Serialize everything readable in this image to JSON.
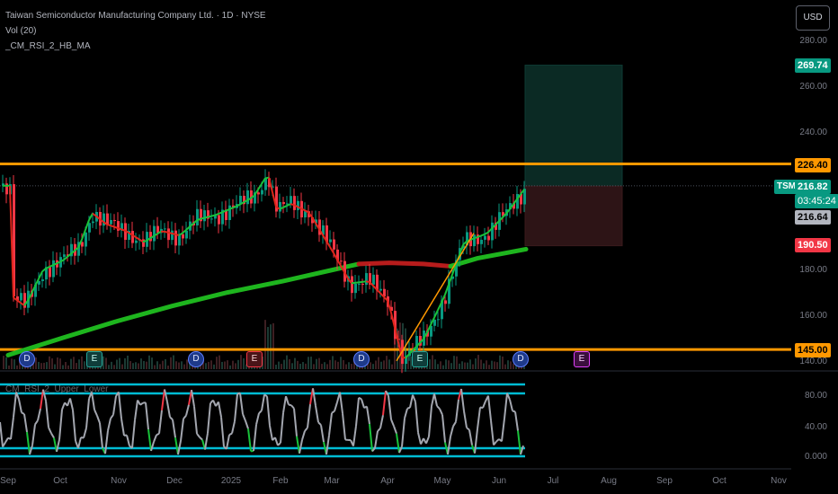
{
  "legend": {
    "symbol_title": "Taiwan Semiconductor Manufacturing Company Ltd. · 1D · NYSE",
    "volume": "Vol (20)",
    "indicator": "_CM_RSI_2_HB_MA",
    "rsi_title": "CM_RSI_2_Upper_Lower"
  },
  "currency_button": "USD",
  "y_axis_labels": [
    "280.00",
    "260.00",
    "240.00",
    "180.00",
    "160.00",
    "140.00"
  ],
  "rsi_axis_labels": [
    "80.00",
    "40.00",
    "0.000"
  ],
  "x_axis_labels": [
    "Sep",
    "Oct",
    "Nov",
    "Dec",
    "2025",
    "Feb",
    "Mar",
    "Apr",
    "May",
    "Jun",
    "Jul",
    "Aug",
    "Sep",
    "Oct",
    "Nov"
  ],
  "price_tags": {
    "target": "269.74",
    "resistance": "226.40",
    "ticker": "TSM",
    "last_price": "216.82",
    "countdown": "03:45:24",
    "close_ref": "216.64",
    "stop": "190.50",
    "support": "145.00"
  },
  "event_markers": [
    "D",
    "E",
    "D",
    "E",
    "D",
    "E",
    "D",
    "E"
  ],
  "colors": {
    "orange_line": "#ff9800",
    "up_candle": "#089981",
    "down_candle": "#f23645",
    "ma_green": "#1eb51e",
    "ma_red": "#b71c1c",
    "teal_zone": "#0b2a24",
    "red_zone": "#2d1416",
    "rsi_band": "#00bcd4",
    "target_tag": "#089981",
    "stop_tag": "#f23645"
  },
  "chart_data": {
    "type": "candlestick",
    "symbol": "TSM",
    "timeframe": "1D",
    "exchange": "NYSE",
    "y_axis_range": [
      134,
      290
    ],
    "horizontal_levels": [
      {
        "label": "226.40",
        "value": 226.4
      },
      {
        "label": "145.00",
        "value": 145.0
      }
    ],
    "position_tool": {
      "entry": 216.64,
      "target": 269.74,
      "stop": 190.5
    },
    "price_path": [
      {
        "date": "2024-09-03",
        "close": 168
      },
      {
        "date": "2024-09-10",
        "close": 164
      },
      {
        "date": "2024-09-20",
        "close": 180
      },
      {
        "date": "2024-10-01",
        "close": 184
      },
      {
        "date": "2024-10-10",
        "close": 190
      },
      {
        "date": "2024-10-17",
        "close": 205
      },
      {
        "date": "2024-10-25",
        "close": 200
      },
      {
        "date": "2024-11-05",
        "close": 197
      },
      {
        "date": "2024-11-15",
        "close": 192
      },
      {
        "date": "2024-11-25",
        "close": 197
      },
      {
        "date": "2024-12-05",
        "close": 195
      },
      {
        "date": "2024-12-15",
        "close": 202
      },
      {
        "date": "2024-12-25",
        "close": 204
      },
      {
        "date": "2025-01-06",
        "close": 208
      },
      {
        "date": "2025-01-15",
        "close": 212
      },
      {
        "date": "2025-01-23",
        "close": 222
      },
      {
        "date": "2025-01-28",
        "close": 206
      },
      {
        "date": "2025-02-05",
        "close": 209
      },
      {
        "date": "2025-02-15",
        "close": 205
      },
      {
        "date": "2025-02-28",
        "close": 188
      },
      {
        "date": "2025-03-10",
        "close": 174
      },
      {
        "date": "2025-03-20",
        "close": 175
      },
      {
        "date": "2025-03-31",
        "close": 166
      },
      {
        "date": "2025-04-08",
        "close": 140
      },
      {
        "date": "2025-04-20",
        "close": 150
      },
      {
        "date": "2025-05-01",
        "close": 168
      },
      {
        "date": "2025-05-12",
        "close": 192
      },
      {
        "date": "2025-05-25",
        "close": 196
      },
      {
        "date": "2025-06-05",
        "close": 205
      },
      {
        "date": "2025-06-16",
        "close": 216.82
      }
    ]
  }
}
